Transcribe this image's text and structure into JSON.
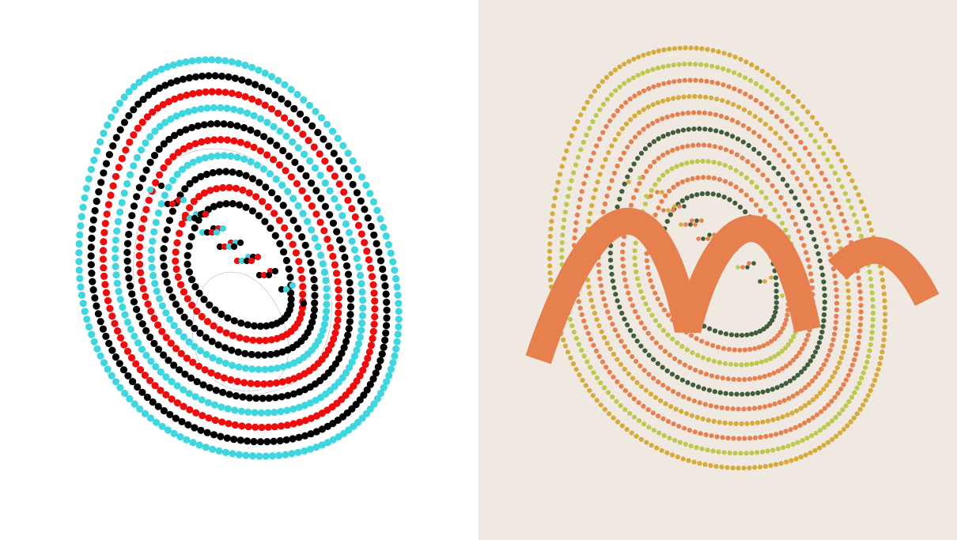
{
  "panels": [
    {
      "id": "left",
      "background": "#ffffff",
      "palette": [
        "#3fd6df",
        "#000000",
        "#ee0d0d",
        "#3fd6df",
        "#000000",
        "#ee0d0d",
        "#3fd6df",
        "#000000",
        "#ee0d0d",
        "#000000"
      ],
      "guide_lines": true
    },
    {
      "id": "right",
      "background": "#efe9e1",
      "palette": [
        "#d6ab3c",
        "#bcc94f",
        "#e6804f",
        "#d6ab3c",
        "#e6804f",
        "#3f5d3a",
        "#e6804f",
        "#bcc94f",
        "#e6804f",
        "#3f5d3a"
      ],
      "guide_lines": false,
      "signature_color": "#e6804f"
    }
  ]
}
